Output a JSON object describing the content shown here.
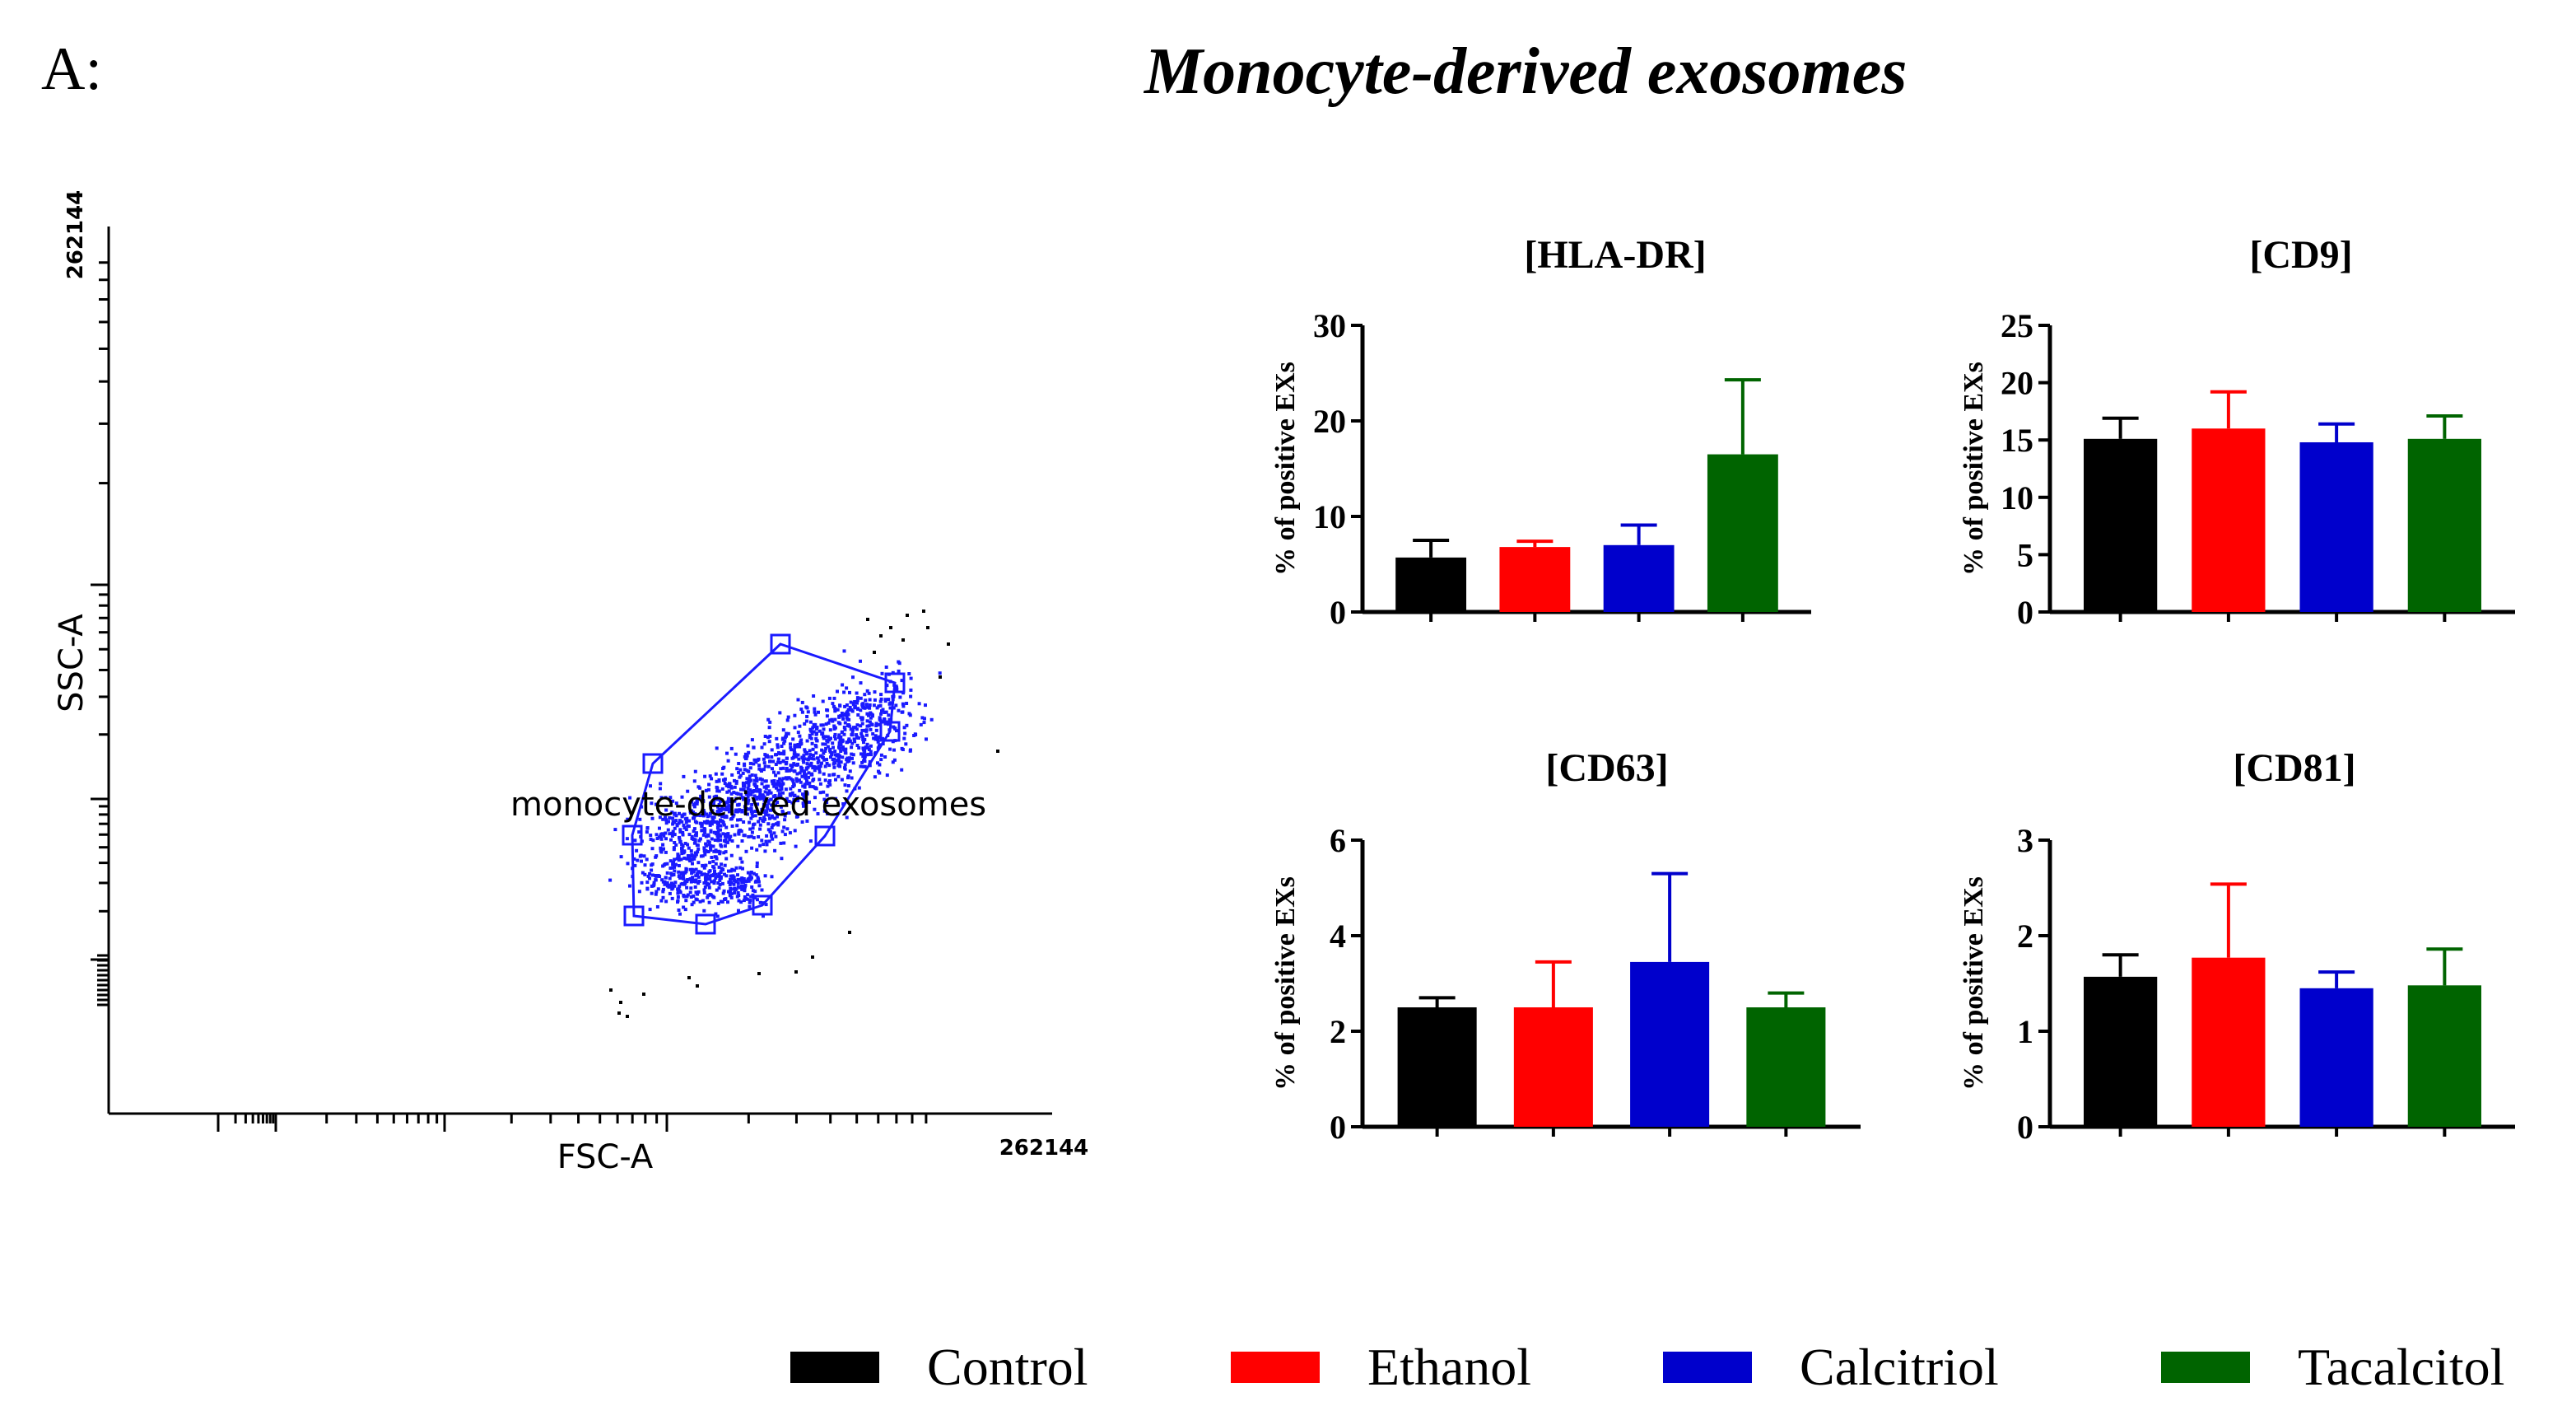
{
  "panel_label": "A:",
  "main_title": "Monocyte-derived exosomes",
  "colors": {
    "Control": "#000000",
    "Ethanol": "#ff0000",
    "Calcitriol": "#0000cc",
    "Tacalcitol": "#006400",
    "gate": "#1a1aff"
  },
  "flow_plot": {
    "x_label": "FSC-A",
    "y_label": "SSC-A",
    "x_max_label": "262144",
    "y_max_label": "262144",
    "gate_label": "monocyte-derived exosomes"
  },
  "legend": {
    "items": [
      {
        "label": "Control",
        "color": "#000000"
      },
      {
        "label": "Ethanol",
        "color": "#ff0000"
      },
      {
        "label": "Calcitriol",
        "color": "#0000cc"
      },
      {
        "label": "Tacalcitol",
        "color": "#006400"
      }
    ]
  },
  "chart_data": [
    {
      "type": "bar",
      "title": "[HLA-DR]",
      "ylabel": "% of positive EXs",
      "xlabel": "",
      "categories": [
        "Control",
        "Ethanol",
        "Calcitriol",
        "Tacalcitol"
      ],
      "values": [
        5.7,
        6.8,
        7.0,
        16.5
      ],
      "errors": [
        1.8,
        0.6,
        2.1,
        7.8
      ],
      "ylim": [
        0,
        30
      ],
      "yticks": [
        0,
        10,
        20,
        30
      ]
    },
    {
      "type": "bar",
      "title": "[CD9]",
      "ylabel": "% of positive EXs",
      "xlabel": "",
      "categories": [
        "Control",
        "Ethanol",
        "Calcitriol",
        "Tacalcitol"
      ],
      "values": [
        15.1,
        16.0,
        14.8,
        15.1
      ],
      "errors": [
        1.8,
        3.2,
        1.6,
        2.0
      ],
      "ylim": [
        0,
        25
      ],
      "yticks": [
        0,
        5,
        10,
        15,
        20,
        25
      ]
    },
    {
      "type": "bar",
      "title": "[CD63]",
      "ylabel": "% of positive EXs",
      "xlabel": "",
      "categories": [
        "Control",
        "Ethanol",
        "Calcitriol",
        "Tacalcitol"
      ],
      "values": [
        2.5,
        2.5,
        3.45,
        2.5
      ],
      "errors": [
        0.2,
        0.95,
        1.85,
        0.3
      ],
      "ylim": [
        0,
        6
      ],
      "yticks": [
        0,
        2,
        4,
        6
      ]
    },
    {
      "type": "bar",
      "title": "[CD81]",
      "ylabel": "% of positive EXs",
      "xlabel": "",
      "categories": [
        "Control",
        "Ethanol",
        "Calcitriol",
        "Tacalcitol"
      ],
      "values": [
        1.57,
        1.77,
        1.45,
        1.48
      ],
      "errors": [
        0.23,
        0.77,
        0.17,
        0.38
      ],
      "ylim": [
        0,
        3
      ],
      "yticks": [
        0,
        1,
        2,
        3
      ]
    }
  ]
}
